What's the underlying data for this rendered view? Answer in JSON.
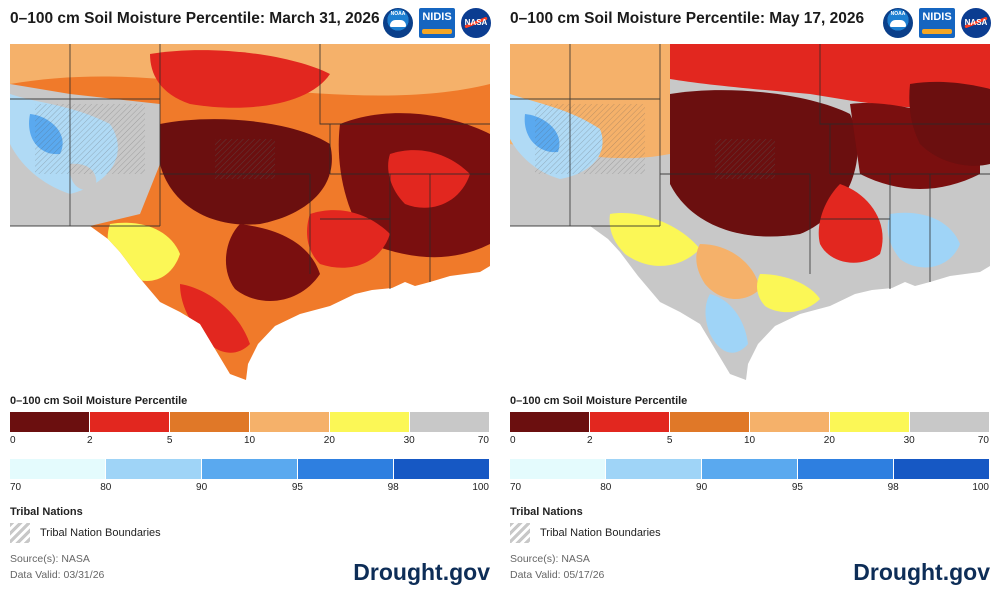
{
  "panels": [
    {
      "title": "0–100 cm Soil Moisture Percentile: March 31, 2026",
      "date": "2026-03-31",
      "map_description_colors": {
        "dominant": "#7a0f0f",
        "secondary": "#e5261f"
      },
      "legend_title": "0–100 cm Soil Moisture Percentile",
      "tribal_title": "Tribal Nations",
      "tribal_label": "Tribal Nation Boundaries",
      "source": "Source(s): NASA",
      "valid": "Data Valid: 03/31/26",
      "brand": "Drought.gov"
    },
    {
      "title": "0–100 cm Soil Moisture Percentile: May 17, 2026",
      "date": "2026-05-17",
      "map_description_colors": {
        "dominant": "#7a0f0f",
        "secondary": "#c8c8c8"
      },
      "legend_title": "0–100 cm Soil Moisture Percentile",
      "tribal_title": "Tribal Nations",
      "tribal_label": "Tribal Nation Boundaries",
      "source": "Source(s): NASA",
      "valid": "Data Valid: 05/17/26",
      "brand": "Drought.gov"
    }
  ],
  "legend": {
    "warm": {
      "colors": [
        "#6b0f0f",
        "#e2271f",
        "#e07828",
        "#f5b16a",
        "#fbf756",
        "#c8c8c8"
      ],
      "ticks": [
        "0",
        "2",
        "5",
        "10",
        "20",
        "30",
        "70"
      ]
    },
    "cool": {
      "colors": [
        "#e4fbfd",
        "#9fd4f7",
        "#5aa9ef",
        "#2e7fe0",
        "#1658c4"
      ],
      "ticks": [
        "70",
        "80",
        "90",
        "95",
        "98",
        "100"
      ]
    }
  },
  "logos": [
    "noaa-logo",
    "nidis-logo",
    "nasa-logo"
  ],
  "logo_text": {
    "noaa": "NOAA",
    "nidis": "NIDIS",
    "nasa": "NASA"
  }
}
